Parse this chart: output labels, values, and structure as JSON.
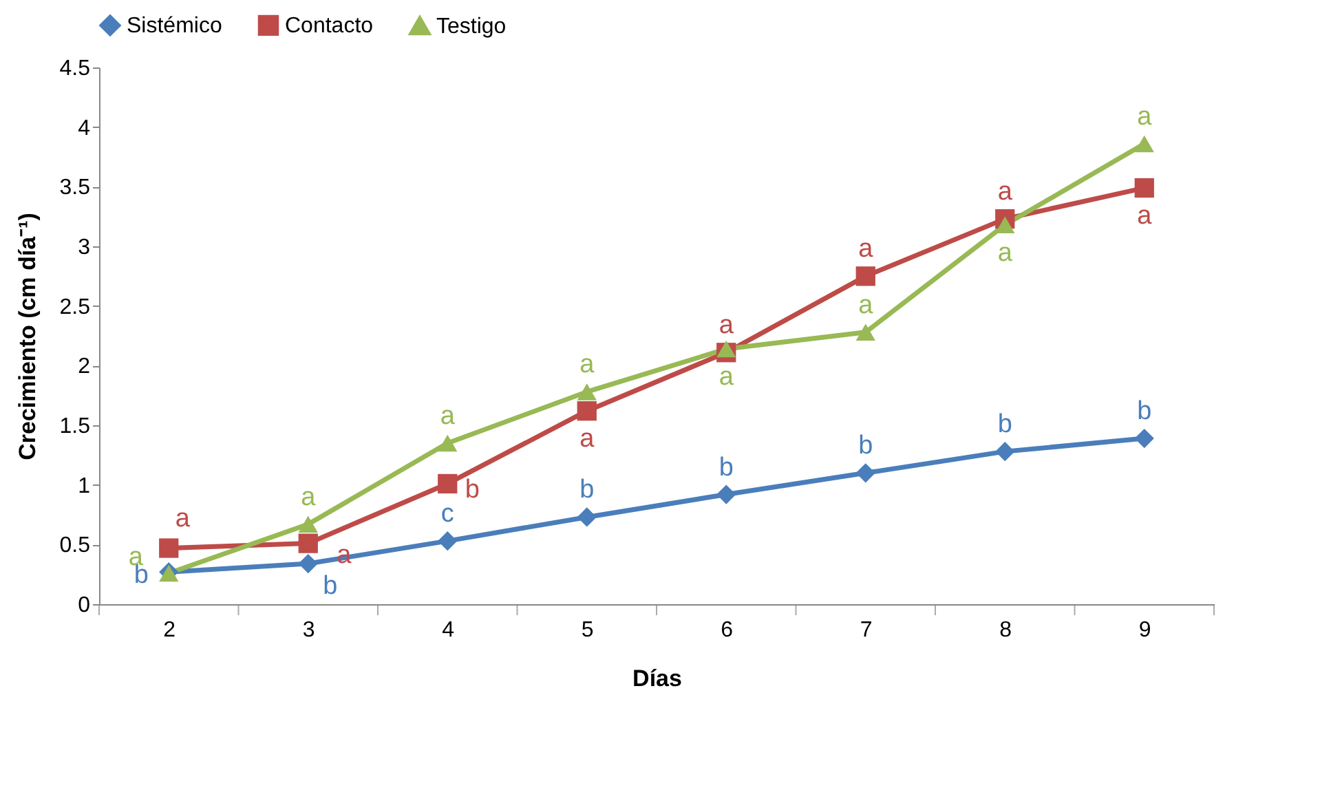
{
  "chart_data": {
    "type": "line",
    "xlabel": "Días",
    "ylabel": "Crecimiento (cm día⁻¹)",
    "categories": [
      "2",
      "3",
      "4",
      "5",
      "6",
      "7",
      "8",
      "9"
    ],
    "series": [
      {
        "name": "Sistémico",
        "color": "#4a7ebb",
        "marker": "diamond",
        "values": [
          0.27,
          0.34,
          0.53,
          0.73,
          0.92,
          1.1,
          1.28,
          1.39
        ],
        "value_labels": [
          "b",
          "b",
          "c",
          "b",
          "b",
          "b",
          "b",
          "b"
        ]
      },
      {
        "name": "Contacto",
        "color": "#be4b48",
        "marker": "square",
        "values": [
          0.47,
          0.51,
          1.01,
          1.62,
          2.11,
          2.75,
          3.23,
          3.49
        ],
        "value_labels": [
          "a",
          "a",
          "b",
          "a",
          "a",
          "a",
          "a",
          "a"
        ]
      },
      {
        "name": "Testigo",
        "color": "#98b954",
        "marker": "triangle",
        "values": [
          0.26,
          0.67,
          1.35,
          1.78,
          2.14,
          2.28,
          3.18,
          3.86
        ],
        "value_labels": [
          "a",
          "a",
          "a",
          "a",
          "a",
          "a",
          "a",
          "a"
        ]
      }
    ],
    "ylim": [
      0,
      4.5
    ],
    "yticks": [
      0,
      0.5,
      1,
      1.5,
      2,
      2.5,
      3,
      3.5,
      4,
      4.5
    ],
    "grid": false,
    "legend": "top",
    "line_style": "solid"
  }
}
